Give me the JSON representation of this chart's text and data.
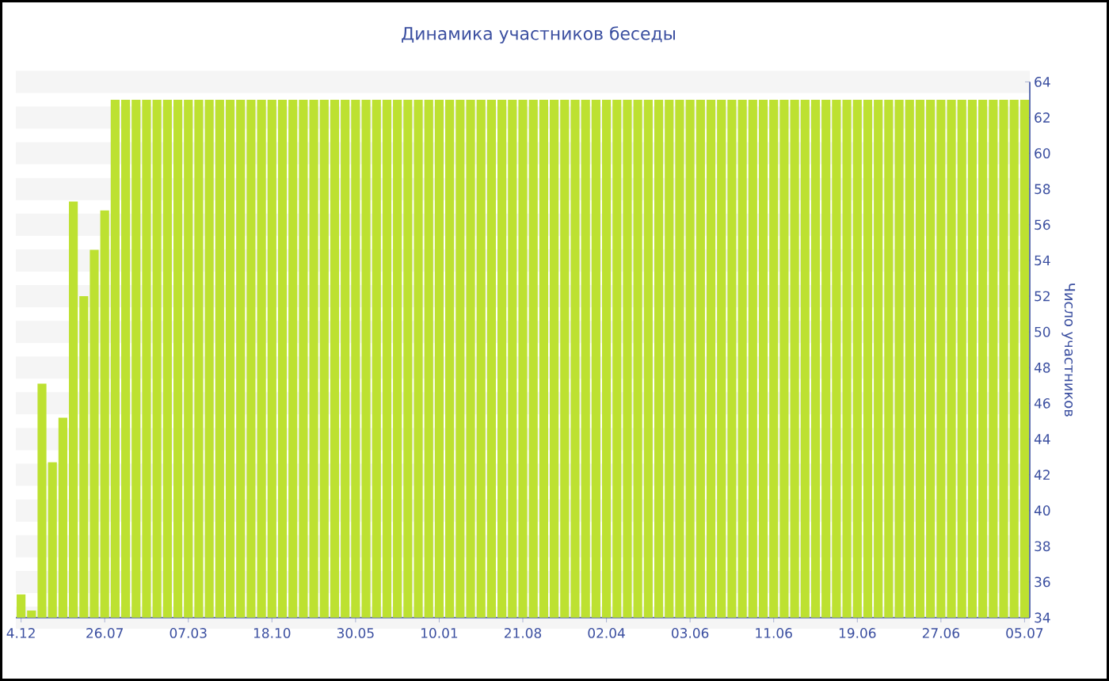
{
  "chart_data": {
    "type": "bar",
    "title": "Динамика участников беседы",
    "ylabel": "Число участников",
    "categories": [
      "4.12",
      null,
      null,
      null,
      null,
      null,
      null,
      null,
      "26.07",
      null,
      null,
      null,
      null,
      null,
      null,
      null,
      "07.03",
      null,
      null,
      null,
      null,
      null,
      null,
      null,
      "18.10",
      null,
      null,
      null,
      null,
      null,
      null,
      null,
      "30.05",
      null,
      null,
      null,
      null,
      null,
      null,
      null,
      "10.01",
      null,
      null,
      null,
      null,
      null,
      null,
      null,
      "21.08",
      null,
      null,
      null,
      null,
      null,
      null,
      null,
      "02.04",
      null,
      null,
      null,
      null,
      null,
      null,
      null,
      "03.06",
      null,
      null,
      null,
      null,
      null,
      null,
      null,
      "11.06",
      null,
      null,
      null,
      null,
      null,
      null,
      null,
      "19.06",
      null,
      null,
      null,
      null,
      null,
      null,
      null,
      "27.06",
      null,
      null,
      null,
      null,
      null,
      null,
      null,
      "05.07"
    ],
    "values": [
      35.3,
      34.4,
      47.1,
      42.7,
      45.2,
      57.3,
      52.0,
      54.6,
      56.8,
      63,
      63,
      63,
      63,
      63,
      63,
      63,
      63,
      63,
      63,
      63,
      63,
      63,
      63,
      63,
      63,
      63,
      63,
      63,
      63,
      63,
      63,
      63,
      63,
      63,
      63,
      63,
      63,
      63,
      63,
      63,
      63,
      63,
      63,
      63,
      63,
      63,
      63,
      63,
      63,
      63,
      63,
      63,
      63,
      63,
      63,
      63,
      63,
      63,
      63,
      63,
      63,
      63,
      63,
      63,
      63,
      63,
      63,
      63,
      63,
      63,
      63,
      63,
      63,
      63,
      63,
      63,
      63,
      63,
      63,
      63,
      63,
      63,
      63,
      63,
      63,
      63,
      63,
      63,
      63,
      63,
      63,
      63,
      63,
      63,
      63,
      63,
      63
    ],
    "color": "#bde131",
    "ylim": [
      34,
      64
    ],
    "yticks": [
      34,
      36,
      38,
      40,
      42,
      44,
      46,
      48,
      50,
      52,
      54,
      56,
      58,
      60,
      62,
      64
    ],
    "grid": "y"
  }
}
